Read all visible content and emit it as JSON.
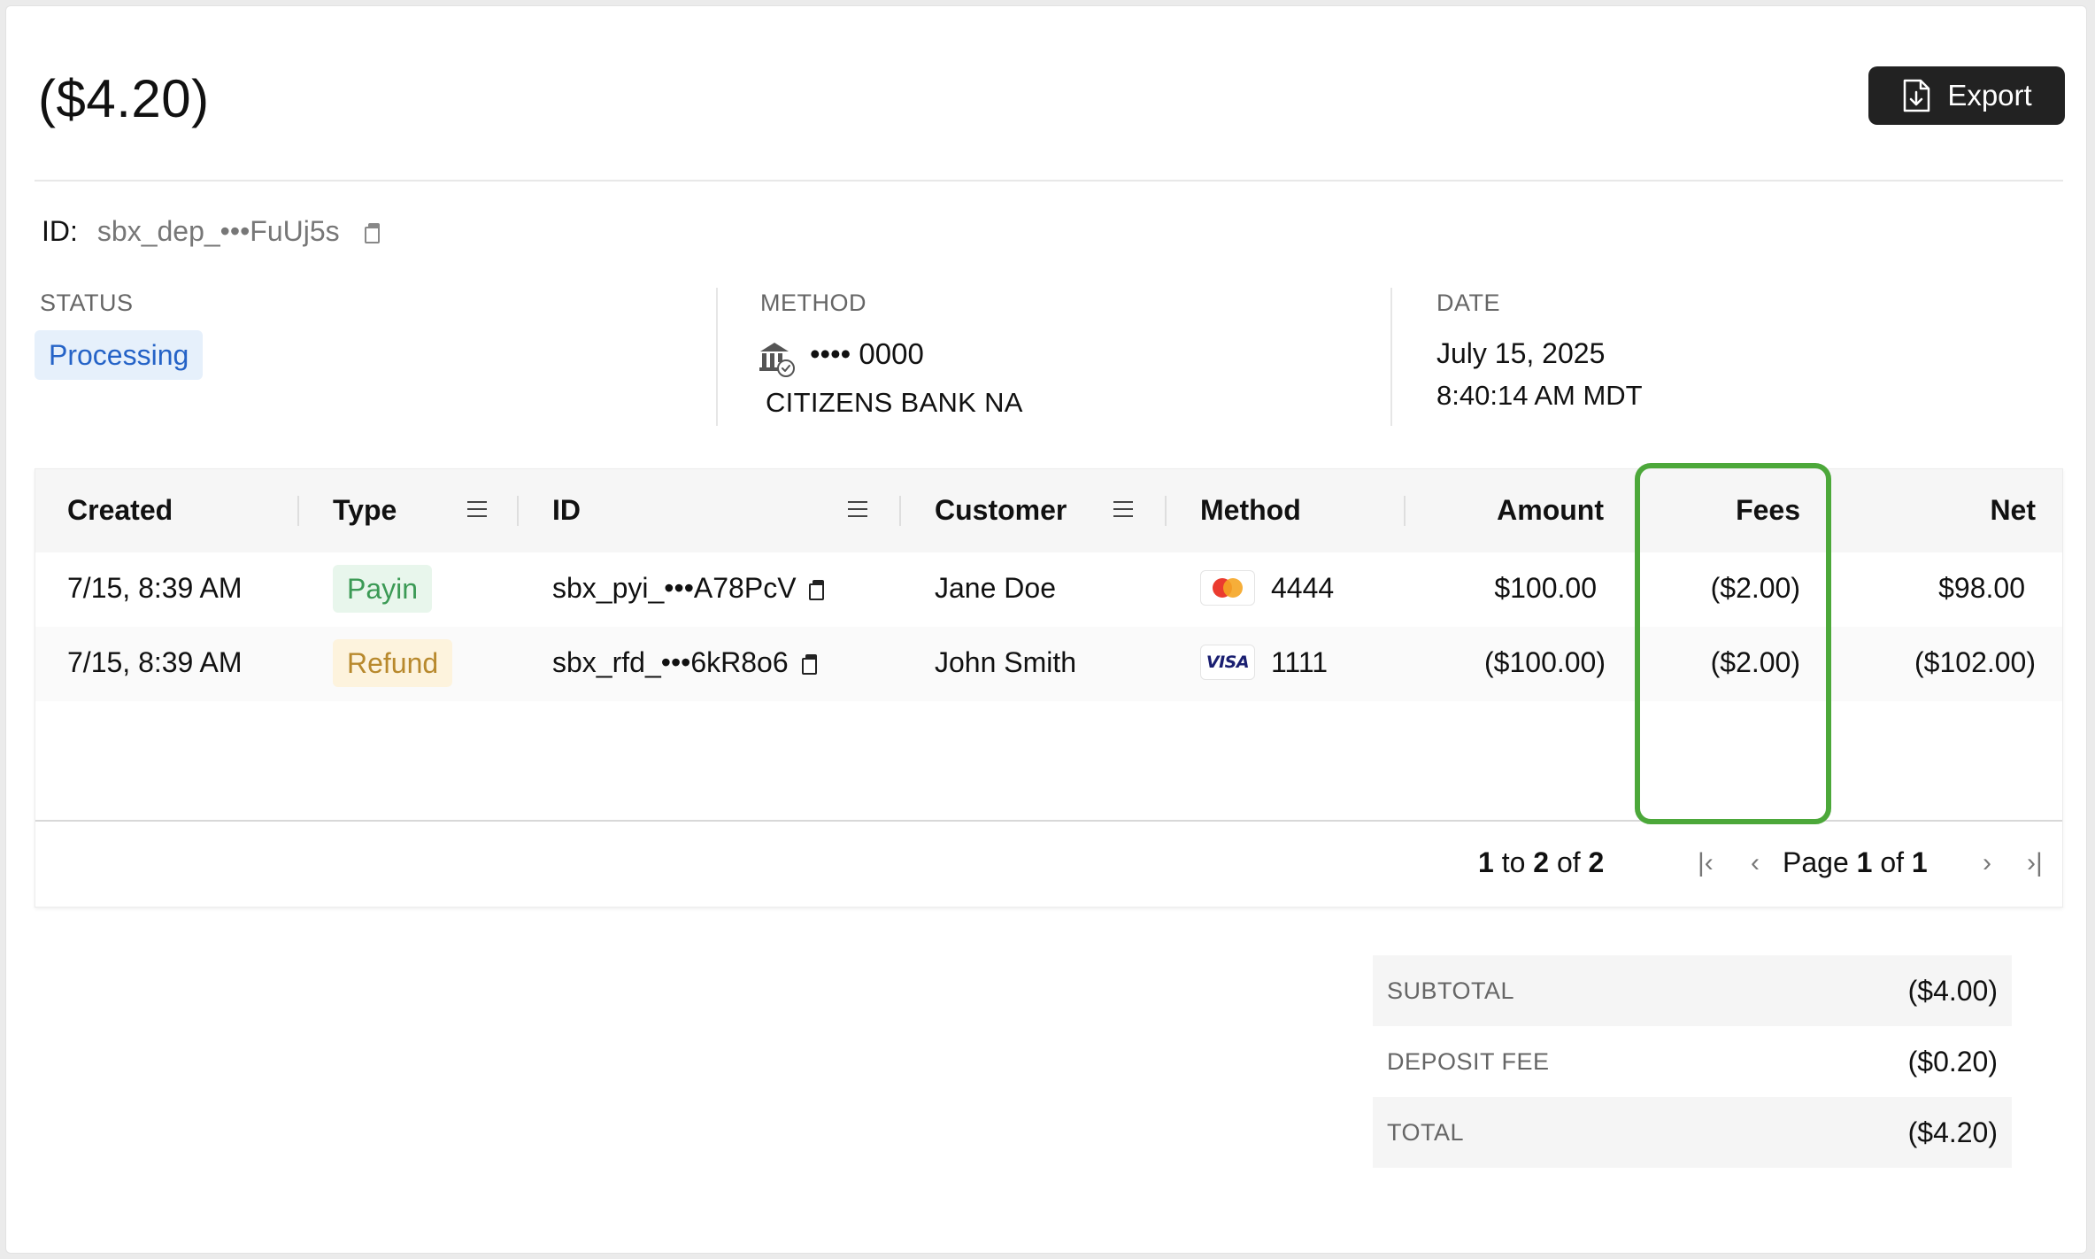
{
  "header": {
    "title": "($4.20)",
    "export_label": "Export"
  },
  "deposit": {
    "id_label": "ID:",
    "id_value": "sbx_dep_•••FuUj5s"
  },
  "meta": {
    "status_label": "STATUS",
    "status_value": "Processing",
    "method_label": "METHOD",
    "method_mask": "•••• 0000",
    "method_bank": "CITIZENS BANK NA",
    "date_label": "DATE",
    "date_value": "July 15, 2025",
    "time_value": "8:40:14 AM MDT"
  },
  "table": {
    "columns": [
      "Created",
      "Type",
      "ID",
      "Customer",
      "Method",
      "Amount",
      "Fees",
      "Net"
    ],
    "rows": [
      {
        "created": "7/15, 8:39 AM",
        "type": "Payin",
        "id": "sbx_pyi_•••A78PcV",
        "customer": "Jane Doe",
        "card_brand": "mastercard",
        "card_last4": "4444",
        "amount": "$100.00",
        "fees": "($2.00)",
        "net": "$98.00"
      },
      {
        "created": "7/15, 8:39 AM",
        "type": "Refund",
        "id": "sbx_rfd_•••6kR8o6",
        "customer": "John Smith",
        "card_brand": "VISA",
        "card_last4": "1111",
        "amount": "($100.00)",
        "fees": "($2.00)",
        "net": "($102.00)"
      }
    ],
    "pager": {
      "range_from": "1",
      "range_to_word": "to",
      "range_to": "2",
      "of_word": "of",
      "total": "2",
      "page_word": "Page",
      "page": "1",
      "pages": "1"
    }
  },
  "summary": {
    "subtotal_label": "SUBTOTAL",
    "subtotal_value": "($4.00)",
    "deposit_fee_label": "DEPOSIT FEE",
    "deposit_fee_value": "($0.20)",
    "total_label": "TOTAL",
    "total_value": "($4.20)"
  },
  "colors": {
    "highlight": "#4ca83a",
    "processing": "#2563c7",
    "payin": "#3b9a55",
    "refund": "#b8892d"
  }
}
